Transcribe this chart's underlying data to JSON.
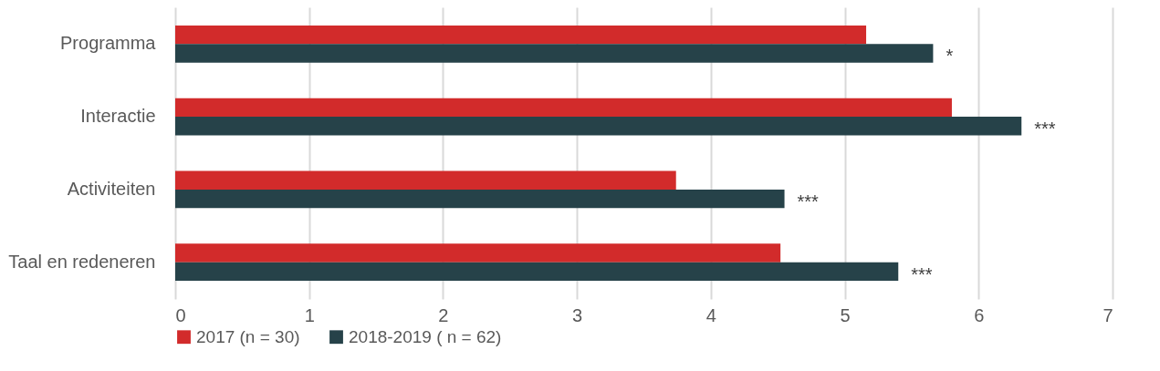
{
  "chart_data": {
    "type": "bar",
    "orientation": "horizontal",
    "categories": [
      "Programma",
      "Interactie",
      "Activiteiten",
      "Taal en redeneren"
    ],
    "series": [
      {
        "name": "2017 (n = 30)",
        "color": "#d22b2b",
        "values": [
          5.16,
          5.8,
          3.74,
          4.52
        ]
      },
      {
        "name": "2018-2019 ( n = 62)",
        "color": "#264249",
        "values": [
          5.66,
          6.32,
          4.55,
          5.4
        ]
      }
    ],
    "xlim": [
      0,
      7
    ],
    "xticks": [
      0,
      1,
      2,
      3,
      4,
      5,
      6,
      7
    ],
    "grid": "x",
    "legend": "bottom",
    "annotations": [
      {
        "text": "*",
        "x": 5.66,
        "y": "Programma"
      },
      {
        "text": "***",
        "x": 6.32,
        "y": "Interactie"
      },
      {
        "text": "***",
        "x": 4.55,
        "y": "Activiteiten"
      },
      {
        "text": "***",
        "x": 5.4,
        "y": "Taal en redeneren"
      }
    ]
  }
}
